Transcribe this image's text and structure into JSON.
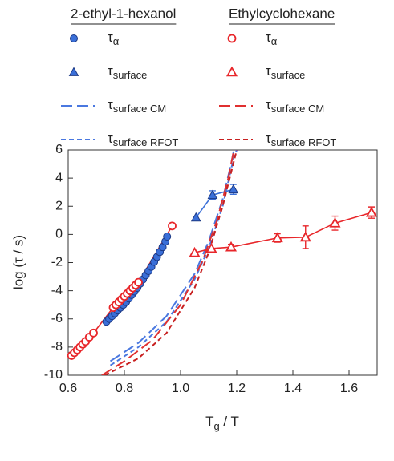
{
  "chart_data": {
    "type": "scatter",
    "ylabel": "log (τ / s)",
    "xlabel": [
      "T",
      "g",
      " / T"
    ],
    "xlim": [
      0.6,
      1.7
    ],
    "ylim": [
      -10,
      6
    ],
    "xticks": [
      0.6,
      0.8,
      {
        "value": 1,
        "label": "1.0"
      },
      1.2,
      1.4,
      1.6
    ],
    "yticks": [
      6,
      4,
      2,
      0,
      -2,
      -4,
      -6,
      -8,
      -10
    ],
    "legend_groups": [
      "2-ethyl-1-hexanol",
      "Ethylcyclohexane"
    ],
    "series": [
      {
        "name": "τ",
        "subscript": "α",
        "group": 0,
        "color": "#3a6fd8",
        "marker": "circle",
        "filled": true,
        "line": false,
        "x": [
          0.736,
          0.746,
          0.756,
          0.766,
          0.776,
          0.786,
          0.796,
          0.806,
          0.816,
          0.826,
          0.836,
          0.846,
          0.856,
          0.866,
          0.876,
          0.886,
          0.896,
          0.906,
          0.916,
          0.926,
          0.936,
          0.946,
          0.952
        ],
        "values": [
          -6.2,
          -6.0,
          -5.8,
          -5.6,
          -5.4,
          -5.2,
          -5.0,
          -4.8,
          -4.55,
          -4.3,
          -4.05,
          -3.8,
          -3.5,
          -3.2,
          -2.9,
          -2.6,
          -2.3,
          -1.95,
          -1.6,
          -1.25,
          -0.9,
          -0.5,
          -0.15
        ]
      },
      {
        "name": "τ",
        "subscript": "surface",
        "group": 0,
        "color": "#3a6fd8",
        "marker": "triangle",
        "filled": true,
        "line": true,
        "x": [
          1.055,
          1.114,
          1.188
        ],
        "values": [
          1.2,
          2.8,
          3.2
        ],
        "error": [
          null,
          0.3,
          0.35
        ]
      },
      {
        "name": "τ",
        "subscript": "surface CM",
        "group": 0,
        "color": "#4a78e0",
        "marker": null,
        "dash": "long",
        "x": [
          0.75,
          0.85,
          0.95,
          1.05,
          1.1,
          1.15,
          1.18,
          1.19
        ],
        "values": [
          -9.0,
          -7.7,
          -5.8,
          -2.8,
          -0.5,
          2.5,
          5.0,
          6.0
        ]
      },
      {
        "name": "τ",
        "subscript": "surface RFOT",
        "group": 0,
        "color": "#4a78e0",
        "marker": null,
        "dash": "short",
        "x": [
          0.75,
          0.85,
          0.95,
          1.05,
          1.1,
          1.15,
          1.19,
          1.2
        ],
        "values": [
          -9.3,
          -8.0,
          -6.2,
          -3.2,
          -1.0,
          2.0,
          5.5,
          6.0
        ]
      },
      {
        "name": "τ",
        "subscript": "α",
        "group": 1,
        "color": "#e8262a",
        "marker": "circle",
        "filled": false,
        "line": true,
        "x": [
          0.612,
          0.622,
          0.632,
          0.642,
          0.652,
          0.662,
          0.675,
          0.69,
          0.76,
          0.77,
          0.78,
          0.79,
          0.8,
          0.81,
          0.82,
          0.83,
          0.84,
          0.85,
          0.97
        ],
        "values": [
          -8.6,
          -8.4,
          -8.2,
          -8.0,
          -7.8,
          -7.6,
          -7.3,
          -7.0,
          -5.2,
          -5.0,
          -4.8,
          -4.6,
          -4.4,
          -4.2,
          -4.0,
          -3.8,
          -3.6,
          -3.4,
          0.6
        ]
      },
      {
        "name": "τ",
        "subscript": "surface",
        "group": 1,
        "color": "#e8262a",
        "marker": "triangle",
        "filled": false,
        "line": true,
        "x": [
          1.05,
          1.11,
          1.18,
          1.345,
          1.445,
          1.55,
          1.68
        ],
        "values": [
          -1.3,
          -1.0,
          -0.9,
          -0.25,
          -0.2,
          0.8,
          1.55
        ],
        "error": [
          null,
          null,
          0.2,
          0.3,
          0.8,
          0.5,
          0.4
        ]
      },
      {
        "name": "τ",
        "subscript": "surface CM",
        "group": 1,
        "color": "#e03030",
        "marker": null,
        "dash": "long",
        "x": [
          0.72,
          0.8,
          0.9,
          1.0,
          1.08,
          1.13,
          1.17,
          1.19
        ],
        "values": [
          -10,
          -9.0,
          -7.5,
          -5.0,
          -1.8,
          1.0,
          4.0,
          6.0
        ]
      },
      {
        "name": "τ",
        "subscript": "surface RFOT",
        "group": 1,
        "color": "#c82020",
        "marker": null,
        "dash": "short",
        "x": [
          0.73,
          0.85,
          0.95,
          1.05,
          1.1,
          1.15,
          1.2
        ],
        "values": [
          -10,
          -8.8,
          -7.0,
          -3.8,
          -1.3,
          2.0,
          6.0
        ]
      }
    ]
  }
}
